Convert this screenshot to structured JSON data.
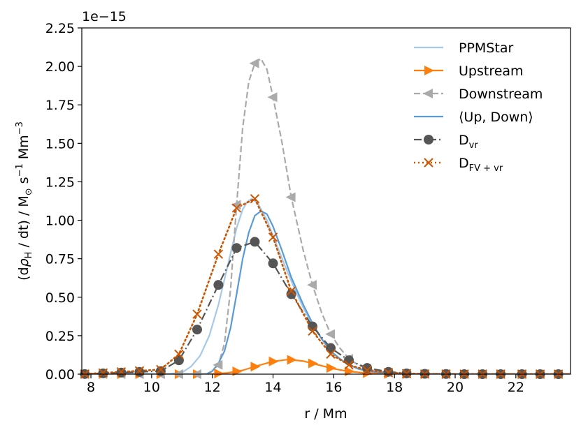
{
  "chart_data": {
    "type": "line",
    "title": "",
    "offset_label": "1e−15",
    "xlabel": "r / Mm",
    "ylabel_parts": {
      "open": "(d",
      "rho": "ρ",
      "sub_h": "H",
      "mid": " / dt) / M",
      "sun": "⊙",
      "s": " s",
      "s_exp": "−1",
      "mm": " Mm",
      "mm_exp": "−3"
    },
    "xlim": [
      7.7,
      23.8
    ],
    "ylim": [
      0,
      2.25
    ],
    "x_ticks": [
      8,
      10,
      12,
      14,
      16,
      18,
      20,
      22
    ],
    "x_tick_labels": [
      "8",
      "10",
      "12",
      "14",
      "16",
      "18",
      "20",
      "22"
    ],
    "y_ticks": [
      0,
      0.25,
      0.5,
      0.75,
      1.0,
      1.25,
      1.5,
      1.75,
      2.0,
      2.25
    ],
    "y_tick_labels": [
      "0.00",
      "0.25",
      "0.50",
      "0.75",
      "1.00",
      "1.25",
      "1.50",
      "1.75",
      "2.00",
      "2.25"
    ],
    "legend_position": "top-right",
    "series": [
      {
        "name": "PPMStar",
        "color": "#a6c9e8",
        "style": "solid",
        "marker": "none",
        "x": [
          7.7,
          10.5,
          11.0,
          11.3,
          11.6,
          11.9,
          12.2,
          12.5,
          12.8,
          13.0,
          13.15,
          13.3,
          13.5,
          13.8,
          14.1,
          14.4,
          14.7,
          15.0,
          15.3,
          15.6,
          15.9,
          16.2,
          16.5,
          16.8,
          17.1,
          17.5,
          18.0,
          18.5,
          19.0,
          23.8
        ],
        "values": [
          0,
          0,
          0.01,
          0.05,
          0.12,
          0.25,
          0.45,
          0.7,
          0.95,
          1.07,
          1.12,
          1.14,
          1.11,
          1.0,
          0.85,
          0.7,
          0.56,
          0.43,
          0.32,
          0.23,
          0.15,
          0.1,
          0.06,
          0.04,
          0.02,
          0.01,
          0.005,
          0.002,
          0.001,
          0
        ]
      },
      {
        "name": "Upstream",
        "color": "#ff7f0e",
        "style": "solid",
        "marker": "triangle-right",
        "x": [
          7.7,
          11.0,
          11.5,
          12.0,
          12.5,
          13.0,
          13.5,
          14.0,
          14.5,
          15.0,
          15.5,
          16.0,
          16.5,
          17.0,
          17.5,
          18.0,
          18.5,
          19.0,
          23.8
        ],
        "values": [
          0,
          0,
          0.0,
          0.002,
          0.008,
          0.025,
          0.055,
          0.083,
          0.095,
          0.085,
          0.06,
          0.035,
          0.018,
          0.008,
          0.003,
          0.001,
          0.0,
          0.0,
          0
        ],
        "marker_x": [
          7.8,
          8.4,
          9.0,
          9.6,
          10.3,
          10.9,
          11.5,
          12.2,
          12.8,
          13.4,
          14.0,
          14.6,
          15.3,
          15.9,
          16.5,
          17.1,
          17.8,
          18.4,
          19.0,
          19.7,
          20.3,
          20.9,
          21.5,
          22.2,
          22.8,
          23.4
        ]
      },
      {
        "name": "Downstream",
        "color": "#aaaaaa",
        "style": "dashed",
        "marker": "triangle-left",
        "x": [
          7.7,
          11.8,
          12.0,
          12.2,
          12.4,
          12.6,
          12.8,
          13.0,
          13.2,
          13.4,
          13.6,
          13.8,
          14.0,
          14.3,
          14.6,
          15.0,
          15.3,
          15.6,
          15.9,
          16.2,
          16.5,
          16.8,
          17.1,
          17.4,
          17.8,
          18.3,
          19.0,
          23.8
        ],
        "values": [
          0,
          0,
          0.02,
          0.06,
          0.2,
          0.55,
          1.1,
          1.6,
          1.9,
          2.02,
          2.05,
          1.98,
          1.8,
          1.5,
          1.15,
          0.8,
          0.58,
          0.4,
          0.26,
          0.17,
          0.1,
          0.06,
          0.035,
          0.02,
          0.01,
          0.004,
          0.001,
          0
        ],
        "marker_x": [
          7.8,
          8.4,
          9.0,
          9.6,
          10.3,
          10.9,
          11.5,
          12.2,
          12.8,
          13.4,
          14.0,
          14.6,
          15.3,
          15.9,
          16.5,
          17.1,
          17.8,
          18.4,
          19.0,
          19.7,
          20.3,
          20.9,
          21.5,
          22.2,
          22.8,
          23.4
        ]
      },
      {
        "name": "⟨Up, Down⟩",
        "color": "#5b9bd5",
        "style": "solid",
        "marker": "none",
        "x": [
          7.7,
          11.8,
          12.0,
          12.2,
          12.4,
          12.6,
          12.8,
          13.0,
          13.2,
          13.4,
          13.6,
          13.8,
          14.0,
          14.3,
          14.6,
          15.0,
          15.3,
          15.6,
          15.9,
          16.2,
          16.5,
          16.8,
          17.1,
          17.5,
          18.0,
          18.5,
          19.0,
          23.8
        ],
        "values": [
          0,
          0,
          0.02,
          0.07,
          0.15,
          0.3,
          0.52,
          0.75,
          0.92,
          1.03,
          1.06,
          1.04,
          0.96,
          0.8,
          0.63,
          0.45,
          0.33,
          0.23,
          0.15,
          0.1,
          0.06,
          0.035,
          0.02,
          0.01,
          0.004,
          0.002,
          0.001,
          0
        ]
      },
      {
        "name": "D",
        "sub": "vr",
        "color": "#555555",
        "style": "dashdot",
        "marker": "circle",
        "x": [
          7.7,
          10.3,
          10.9,
          11.5,
          12.2,
          12.8,
          13.4,
          14.0,
          14.6,
          15.3,
          15.9,
          16.5,
          17.1,
          17.8,
          18.4,
          19.0,
          19.7,
          20.3,
          20.9,
          21.5,
          22.2,
          22.8,
          23.4,
          23.8
        ],
        "values": [
          0,
          0.02,
          0.09,
          0.29,
          0.58,
          0.82,
          0.86,
          0.72,
          0.52,
          0.31,
          0.17,
          0.09,
          0.04,
          0.015,
          0.005,
          0.002,
          0.001,
          0,
          0,
          0,
          0,
          0,
          0,
          0
        ],
        "marker_x": [
          7.8,
          8.4,
          9.0,
          9.6,
          10.3,
          10.9,
          11.5,
          12.2,
          12.8,
          13.4,
          14.0,
          14.6,
          15.3,
          15.9,
          16.5,
          17.1,
          17.8,
          18.4,
          19.0,
          19.7,
          20.3,
          20.9,
          21.5,
          22.2,
          22.8,
          23.4
        ]
      },
      {
        "name": "D",
        "sub": "FV + vr",
        "color": "#cc5500",
        "style": "dotted",
        "marker": "x",
        "x": [
          7.7,
          10.3,
          10.9,
          11.5,
          12.2,
          12.8,
          13.4,
          14.0,
          14.6,
          15.3,
          15.9,
          16.5,
          17.1,
          17.8,
          18.4,
          19.0,
          19.7,
          20.3,
          23.8
        ],
        "values": [
          0,
          0.03,
          0.13,
          0.39,
          0.78,
          1.08,
          1.14,
          0.89,
          0.54,
          0.28,
          0.13,
          0.06,
          0.025,
          0.01,
          0.004,
          0.001,
          0,
          0,
          0
        ],
        "marker_x": [
          7.8,
          8.4,
          9.0,
          9.6,
          10.3,
          10.9,
          11.5,
          12.2,
          12.8,
          13.4,
          14.0,
          14.6,
          15.3,
          15.9,
          16.5,
          17.1,
          17.8,
          18.4,
          19.0,
          19.7,
          20.3,
          20.9,
          21.5,
          22.2,
          22.8,
          23.4
        ]
      }
    ]
  }
}
